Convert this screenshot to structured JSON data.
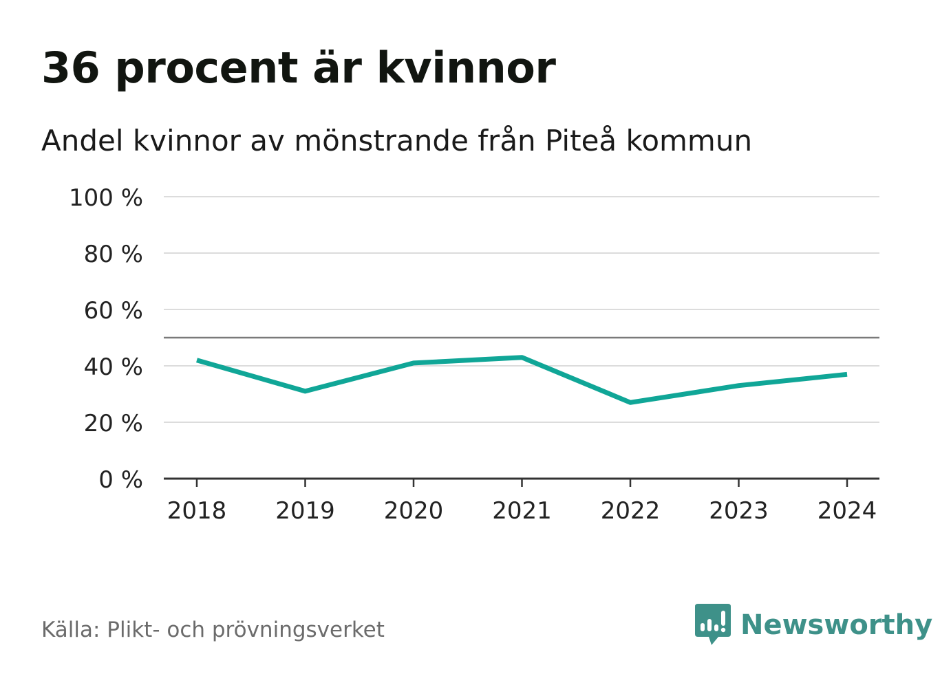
{
  "title": "36 procent är kvinnor",
  "subtitle": "Andel kvinnor av mönstrande från Piteå kommun",
  "source": "Källa: Plikt- och prövningsverket",
  "brand": {
    "name": "Newsworthy",
    "icon": "newsworthy-logo-icon",
    "color": "#3e9189"
  },
  "colors": {
    "line": "#10a697",
    "grid": "#dcdcdc",
    "reference": "#7a7a7a",
    "axis": "#333333",
    "text": "#222222"
  },
  "chart_data": {
    "type": "line",
    "title": "36 procent är kvinnor",
    "subtitle": "Andel kvinnor av mönstrande från Piteå kommun",
    "x": [
      "2018",
      "2019",
      "2020",
      "2021",
      "2022",
      "2023",
      "2024"
    ],
    "series": [
      {
        "values": [
          42,
          31,
          41,
          43,
          27,
          33,
          37
        ]
      }
    ],
    "ylim": [
      0,
      100
    ],
    "yticks": [
      0,
      20,
      40,
      60,
      80,
      100
    ],
    "ytick_labels": [
      "0 %",
      "20 %",
      "40 %",
      "60 %",
      "80 %",
      "100 %"
    ],
    "reference_line": 50,
    "grid": true,
    "xlabel": "",
    "ylabel": ""
  }
}
